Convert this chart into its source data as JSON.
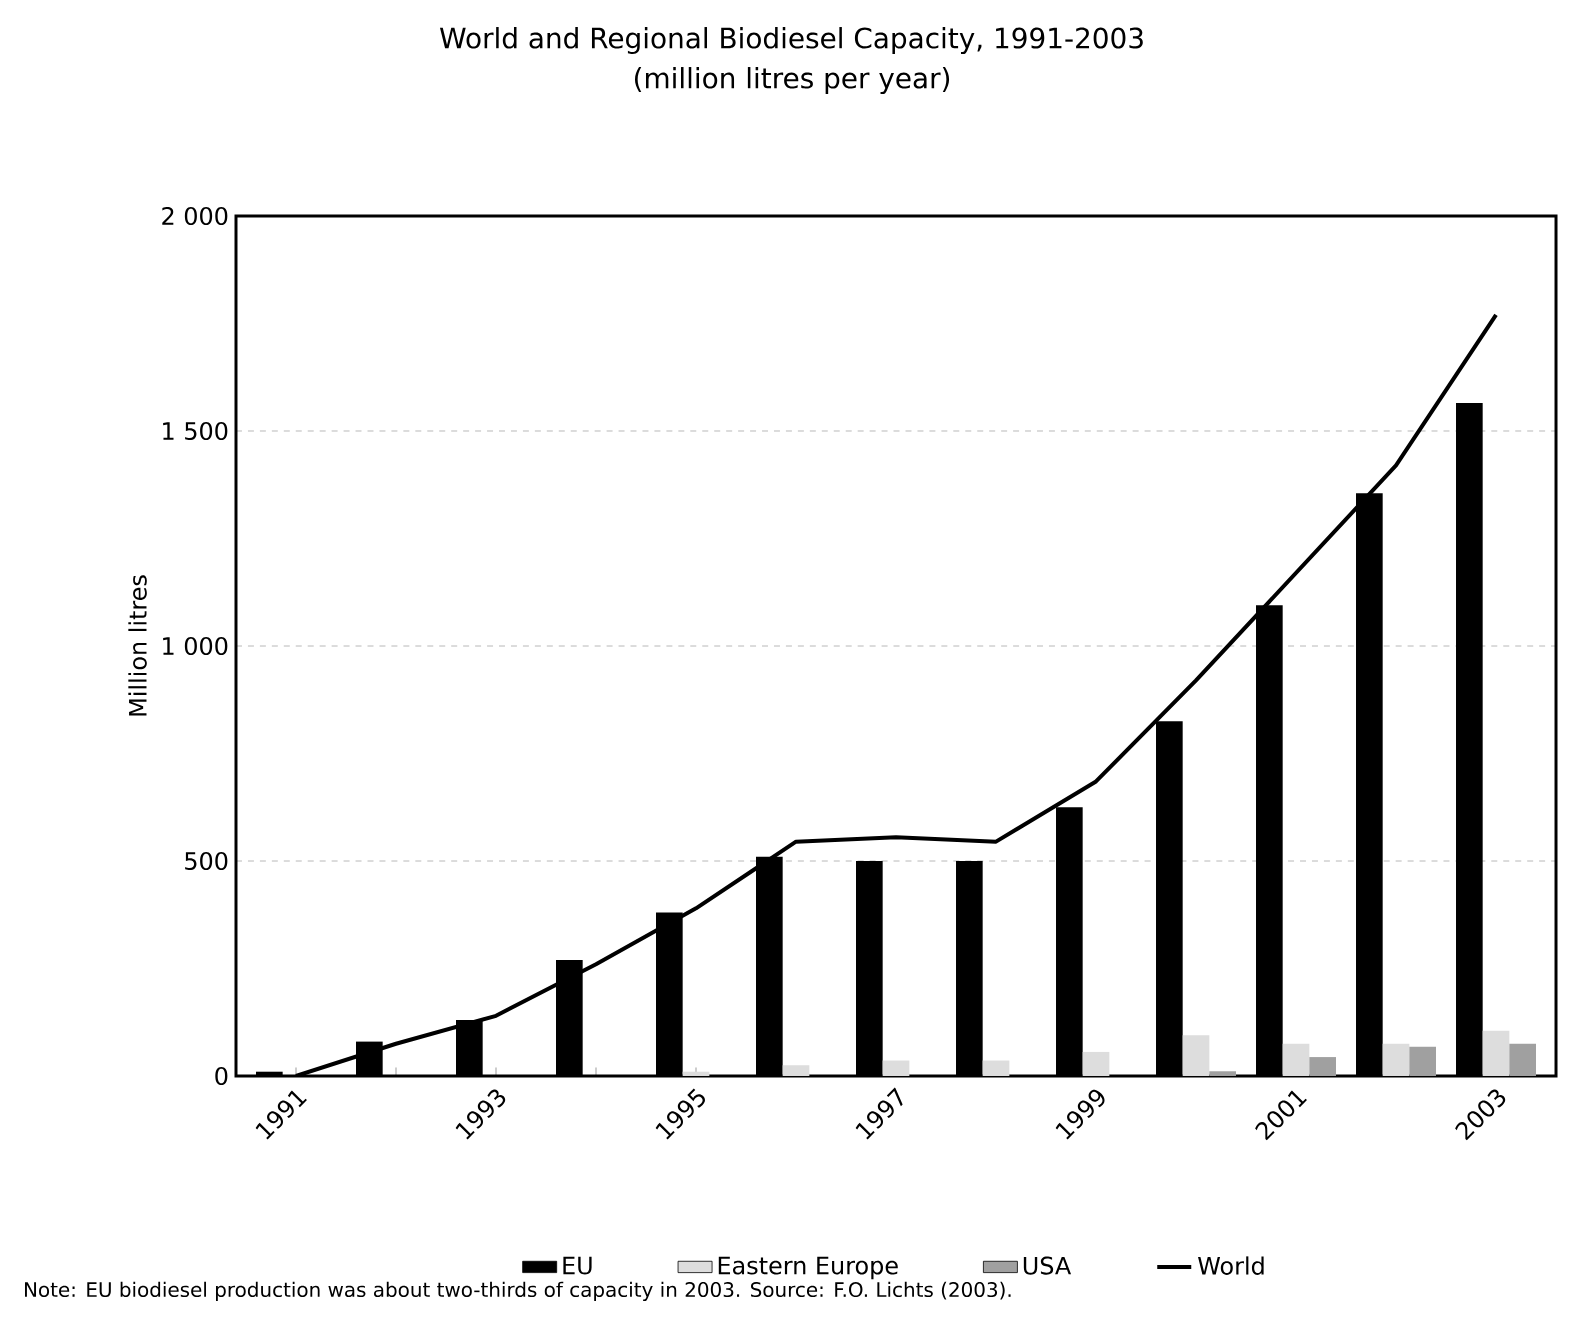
{
  "chart_data": {
    "type": "bar",
    "title": "World and Regional Biodiesel Capacity, 1991-2003",
    "subtitle": "(million litres per year)",
    "ylabel": "Million litres",
    "categories": [
      "1991",
      null,
      "1993",
      null,
      "1995",
      null,
      "1997",
      null,
      "1999",
      null,
      "2001",
      null,
      "2003"
    ],
    "series": [
      {
        "name": "EU",
        "color": "#000000",
        "values": [
          10,
          80,
          130,
          270,
          380,
          510,
          500,
          500,
          625,
          825,
          1095,
          1355,
          1565
        ]
      },
      {
        "name": "Eastern Europe",
        "color": "#dddddd",
        "values": [
          null,
          null,
          null,
          null,
          10,
          25,
          36,
          36,
          56,
          95,
          75,
          75,
          105
        ]
      },
      {
        "name": "USA",
        "color": "#a0a0a0",
        "values": [
          null,
          null,
          null,
          null,
          null,
          null,
          null,
          null,
          null,
          11,
          44,
          68,
          75
        ]
      },
      {
        "name": "World",
        "type": "line",
        "color": "#000000",
        "values": [
          0,
          75,
          140,
          260,
          390,
          545,
          555,
          545,
          685,
          920,
          1170,
          1420,
          1770
        ]
      }
    ],
    "ylim": [
      0,
      2000
    ],
    "yticks": [
      0,
      500,
      {
        "value": 1000,
        "label": "1 000"
      },
      {
        "value": 1500,
        "label": "1 500"
      },
      {
        "value": 2000,
        "label": "2 000"
      }
    ],
    "grid": "y",
    "legend": "bottom",
    "annotations": [
      "Note: EU biodiesel production was about two-thirds of capacity in 2003. Source: F.O. Lichts (2003)."
    ]
  }
}
